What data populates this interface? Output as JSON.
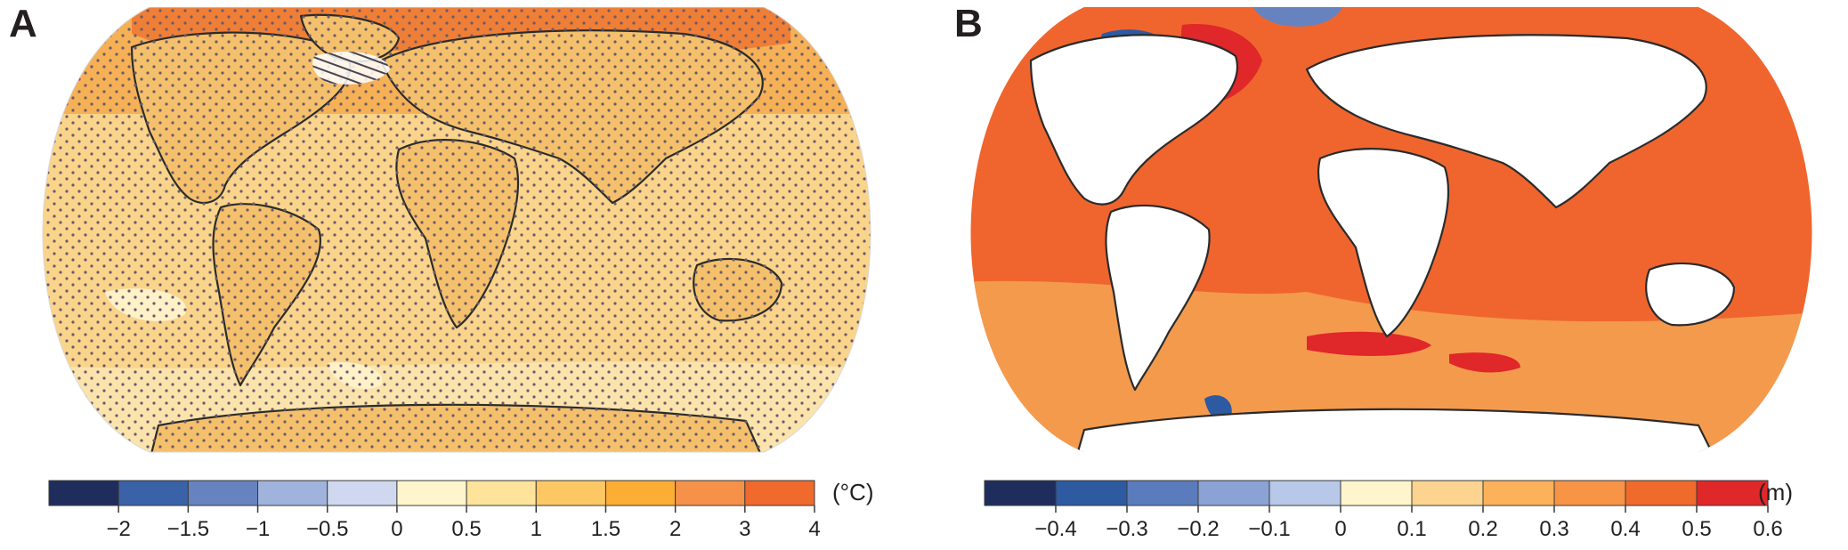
{
  "panels": [
    {
      "letter": "A",
      "unit": "(°C)",
      "colorbar": {
        "colors": [
          "#1f2d5c",
          "#3a62a8",
          "#6683bf",
          "#9fb3dc",
          "#cfd8ee",
          "#fff5cc",
          "#fee39b",
          "#fdc764",
          "#fbad34",
          "#f6914a",
          "#ef6a2c"
        ],
        "ticks": [
          "−2",
          "−1.5",
          "−1",
          "−0.5",
          "0",
          "0.5",
          "1",
          "1.5",
          "2",
          "3",
          "4"
        ]
      },
      "map": {
        "ocean_color": "#f9d48a",
        "land_color": "#f6c36e",
        "high_lat_color": "#f3a24a",
        "arctic_color": "#ec7a35",
        "antarctic_color": "#fbe0a4",
        "stipple": true,
        "hatched_region": "North Atlantic"
      }
    },
    {
      "letter": "B",
      "unit": "(m)",
      "colorbar": {
        "colors": [
          "#1f2d5c",
          "#2d5aa0",
          "#5a7cbd",
          "#8aa3d4",
          "#b7c8e8",
          "#fff5cc",
          "#fcd48f",
          "#fbb25a",
          "#f79446",
          "#f06a2c",
          "#e0272a"
        ],
        "ticks": [
          "−0.4",
          "−0.3",
          "−0.2",
          "−0.1",
          "0",
          "0.1",
          "0.2",
          "0.3",
          "0.4",
          "0.5",
          "0.6"
        ]
      },
      "map": {
        "ocean_color": "#f0652e",
        "southern_color": "#f49a4d",
        "land_color": "#ffffff",
        "negative_color": "#2d5aa0",
        "peak_color": "#e0272a"
      }
    }
  ]
}
